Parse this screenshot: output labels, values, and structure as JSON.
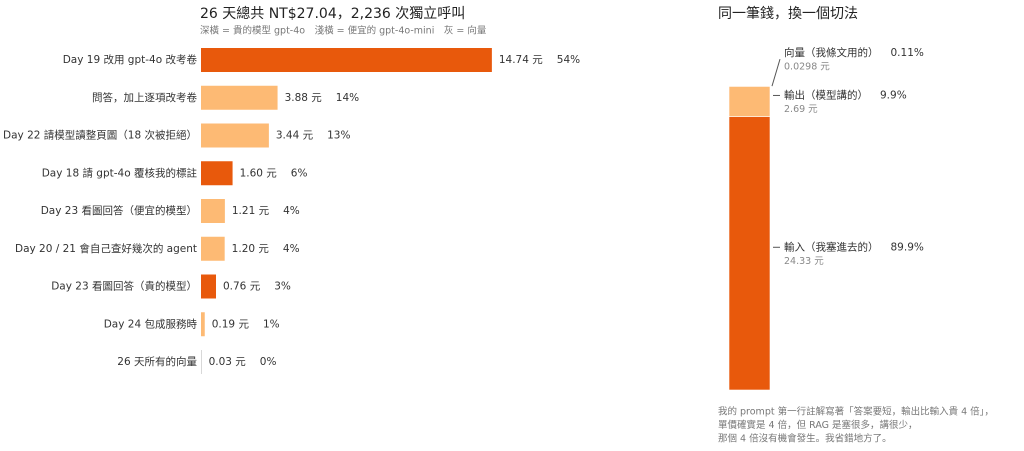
{
  "chart_data": [
    {
      "type": "barh",
      "title": "26 天總共 NT$27.04，2,236 次獨立呼叫",
      "subtitle": "深橫 = 貴的模型 gpt-4o　淺橫 = 便宜的 gpt-4o-mini　灰 = 向量",
      "categories": [
        "Day 19 改用 gpt-4o 改考卷",
        "問答，加上逐項改考卷",
        "Day 22 請模型讀整頁圖（18 次被拒絕）",
        "Day 18 請 gpt-4o 覆核我的標註",
        "Day 23 看圖回答（便宜的模型）",
        "Day 20 / 21 會自己查好幾次的 agent",
        "Day 23 看圖回答（貴的模型）",
        "Day 24 包成服務時",
        "26 天所有的向量"
      ],
      "values": [
        14.74,
        3.88,
        3.44,
        1.6,
        1.21,
        1.2,
        0.76,
        0.19,
        0.03
      ],
      "value_labels": [
        "14.74 元",
        "3.88 元",
        "3.44 元",
        "1.60 元",
        "1.21 元",
        "1.20 元",
        "0.76 元",
        "0.19 元",
        "0.03 元"
      ],
      "share_labels": [
        "54%",
        "14%",
        "13%",
        "6%",
        "4%",
        "4%",
        "3%",
        "1%",
        "0%"
      ],
      "colors": [
        "#e8590c",
        "#fdba74",
        "#fdba74",
        "#e8590c",
        "#fdba74",
        "#fdba74",
        "#e8590c",
        "#fdba74",
        "#bdbdbd"
      ],
      "xlim": [
        0,
        15
      ]
    },
    {
      "type": "stacked-bar",
      "title": "同一筆錢，換一個切法",
      "series": [
        {
          "name": "輸入（我塞進去的）",
          "color": "#e8590c",
          "values": [
            24.33
          ],
          "value_labels": [
            "24.33 元"
          ],
          "share_label": "89.9%"
        },
        {
          "name": "輸出（模型講的）",
          "color": "#fdba74",
          "values": [
            2.69
          ],
          "value_labels": [
            "2.69 元"
          ],
          "share_label": "9.9%"
        },
        {
          "name": "向量（我條文用的）",
          "color": "#bdbdbd",
          "values": [
            0.0298
          ],
          "value_labels": [
            "0.0298 元"
          ],
          "share_label": "0.11%"
        }
      ],
      "ylim": [
        0,
        27.05
      ],
      "annotations": [
        "我的 prompt 第一行註解寫著「答案要短，輸出比輸入貴 4 倍」，",
        "單價確實是 4 倍，但 RAG 是塞很多，講很少，",
        "那個 4 倍沒有機會發生。我省錯地方了。"
      ]
    }
  ]
}
